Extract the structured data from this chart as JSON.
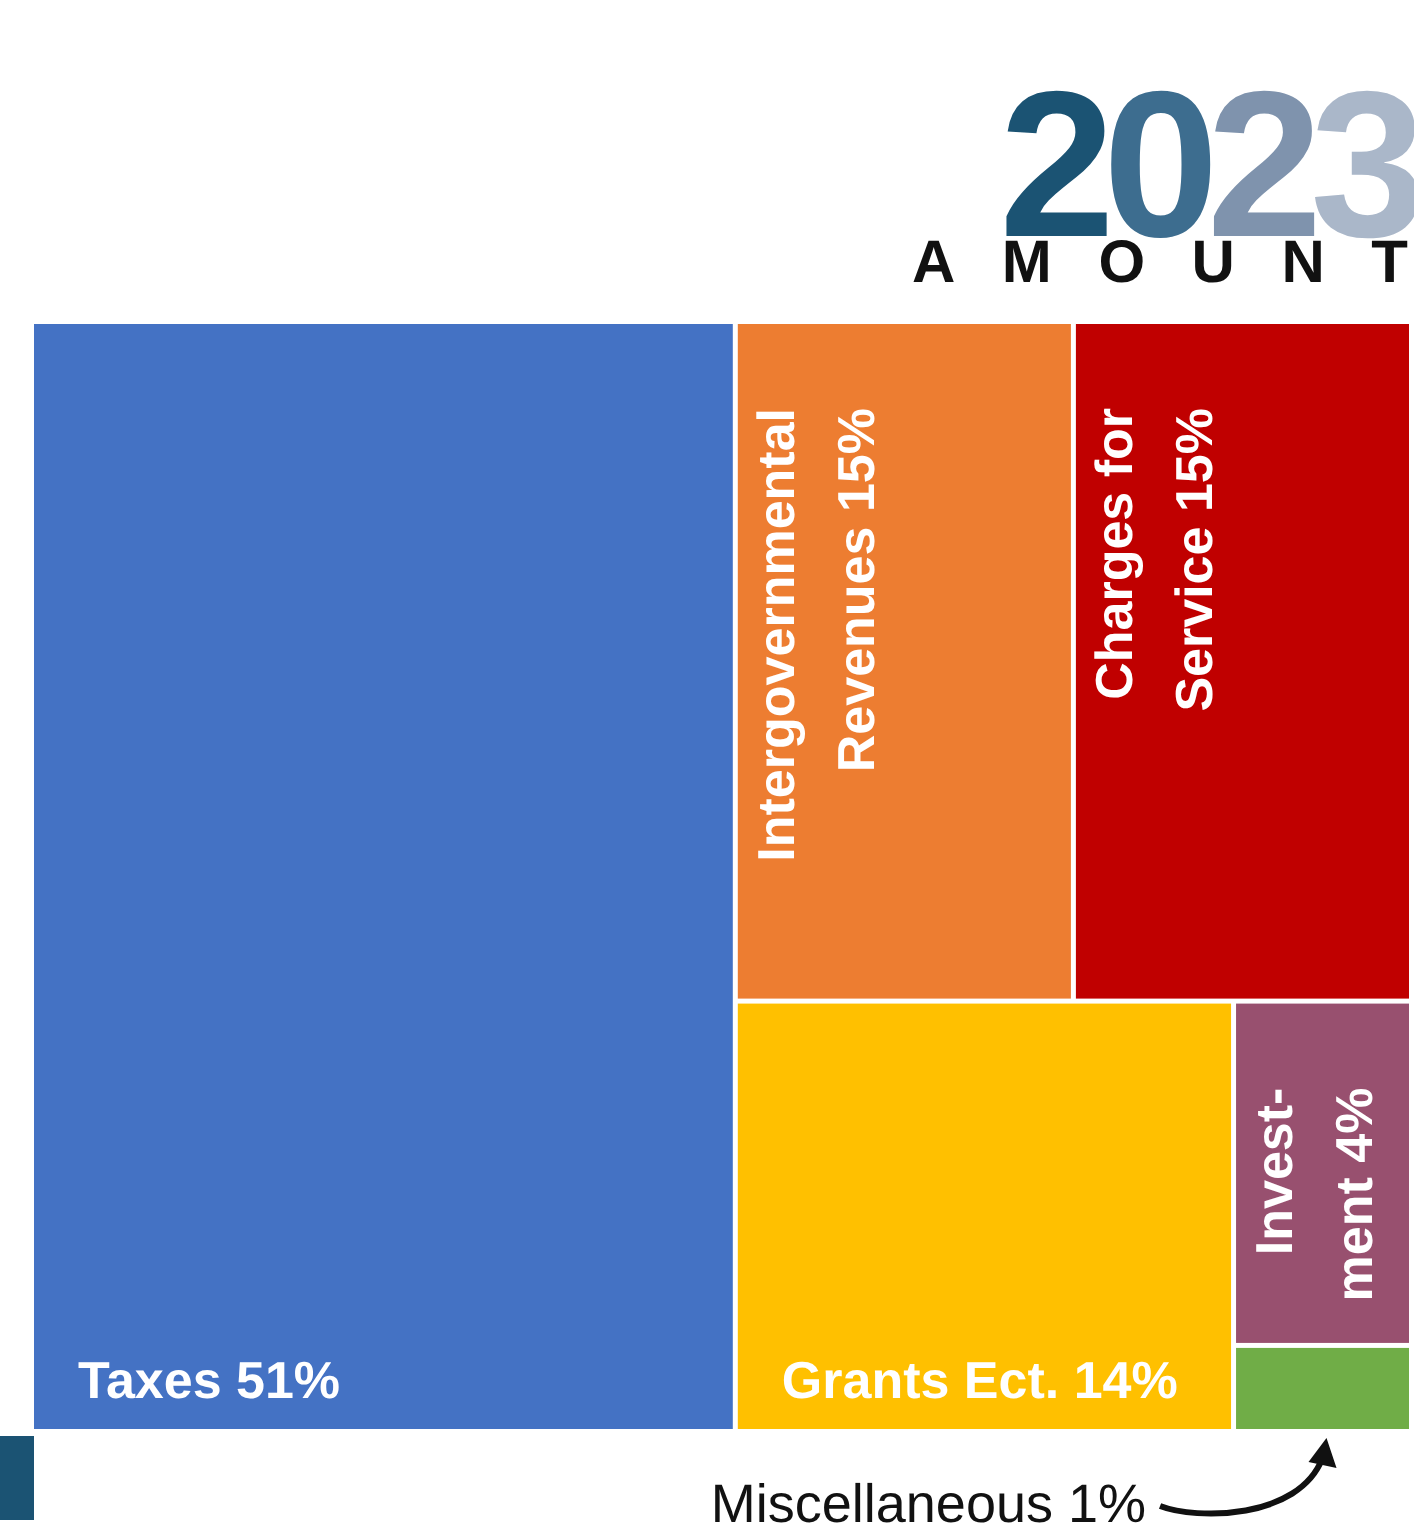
{
  "chart_data": {
    "type": "other",
    "title": "2023",
    "subtitle": "AMOUNT",
    "categories": [
      "Taxes",
      "Intergovernmental Revenues",
      "Charges for Service",
      "Grants Ect.",
      "Invest-ment",
      "Miscellaneous"
    ],
    "values": [
      51,
      15,
      15,
      14,
      4,
      1
    ],
    "value_labels": [
      "51%",
      "15%",
      "15%",
      "14%",
      "4%",
      "1%"
    ],
    "colors": [
      "#4472c4",
      "#ed7d31",
      "#c00000",
      "#ffc000",
      "#98506f",
      "#70ad47"
    ]
  }
}
